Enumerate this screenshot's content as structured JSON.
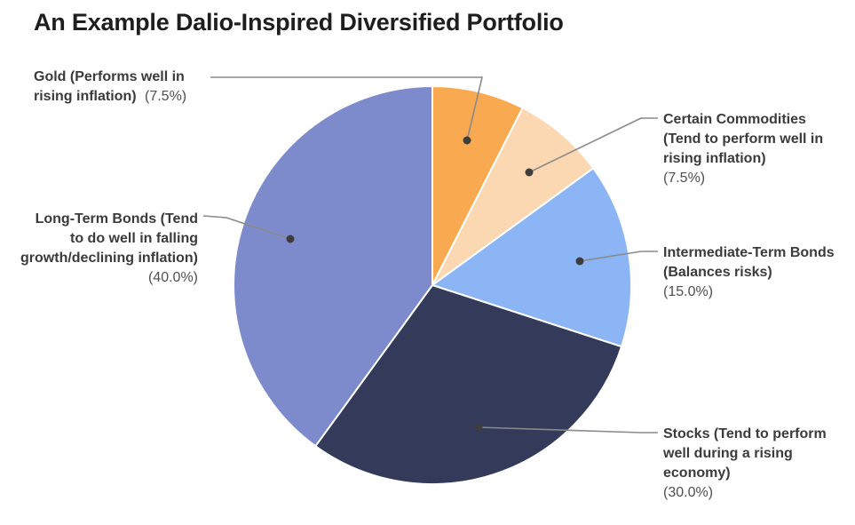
{
  "title": "An Example Dalio-Inspired Diversified Portfolio",
  "chart_data": {
    "type": "pie",
    "title": "An Example Dalio-Inspired Diversified Portfolio",
    "start_angle_deg_from_top_clockwise": 0,
    "legend_position": "callout-labels",
    "slices": [
      {
        "label": "Gold (Performs well in rising inflation)",
        "pct_text": "(7.5%)",
        "value": 7.5,
        "color": "#F9A94F"
      },
      {
        "label": "Certain Commodities (Tend to perform well in rising inflation)",
        "pct_text": "(7.5%)",
        "value": 7.5,
        "color": "#FBD8B1"
      },
      {
        "label": "Intermediate-Term Bonds (Balances risks)",
        "pct_text": "(15.0%)",
        "value": 15.0,
        "color": "#8CB5F5"
      },
      {
        "label": "Stocks (Tend to perform well during a rising economy)",
        "pct_text": "(30.0%)",
        "value": 30.0,
        "color": "#333A5A"
      },
      {
        "label": "Long-Term Bonds (Tend to do well in falling growth/declining inflation)",
        "pct_text": "(40.0%)",
        "value": 40.0,
        "color": "#7D8BCC"
      }
    ],
    "colors": {
      "leader_line": "#8a8a8a",
      "leader_dot": "#3d3d3d",
      "title_text": "#1e1e1e",
      "label_text": "#3b3b3b",
      "pct_text": "#4f4f4f",
      "slice_separator": "#ffffff"
    }
  }
}
